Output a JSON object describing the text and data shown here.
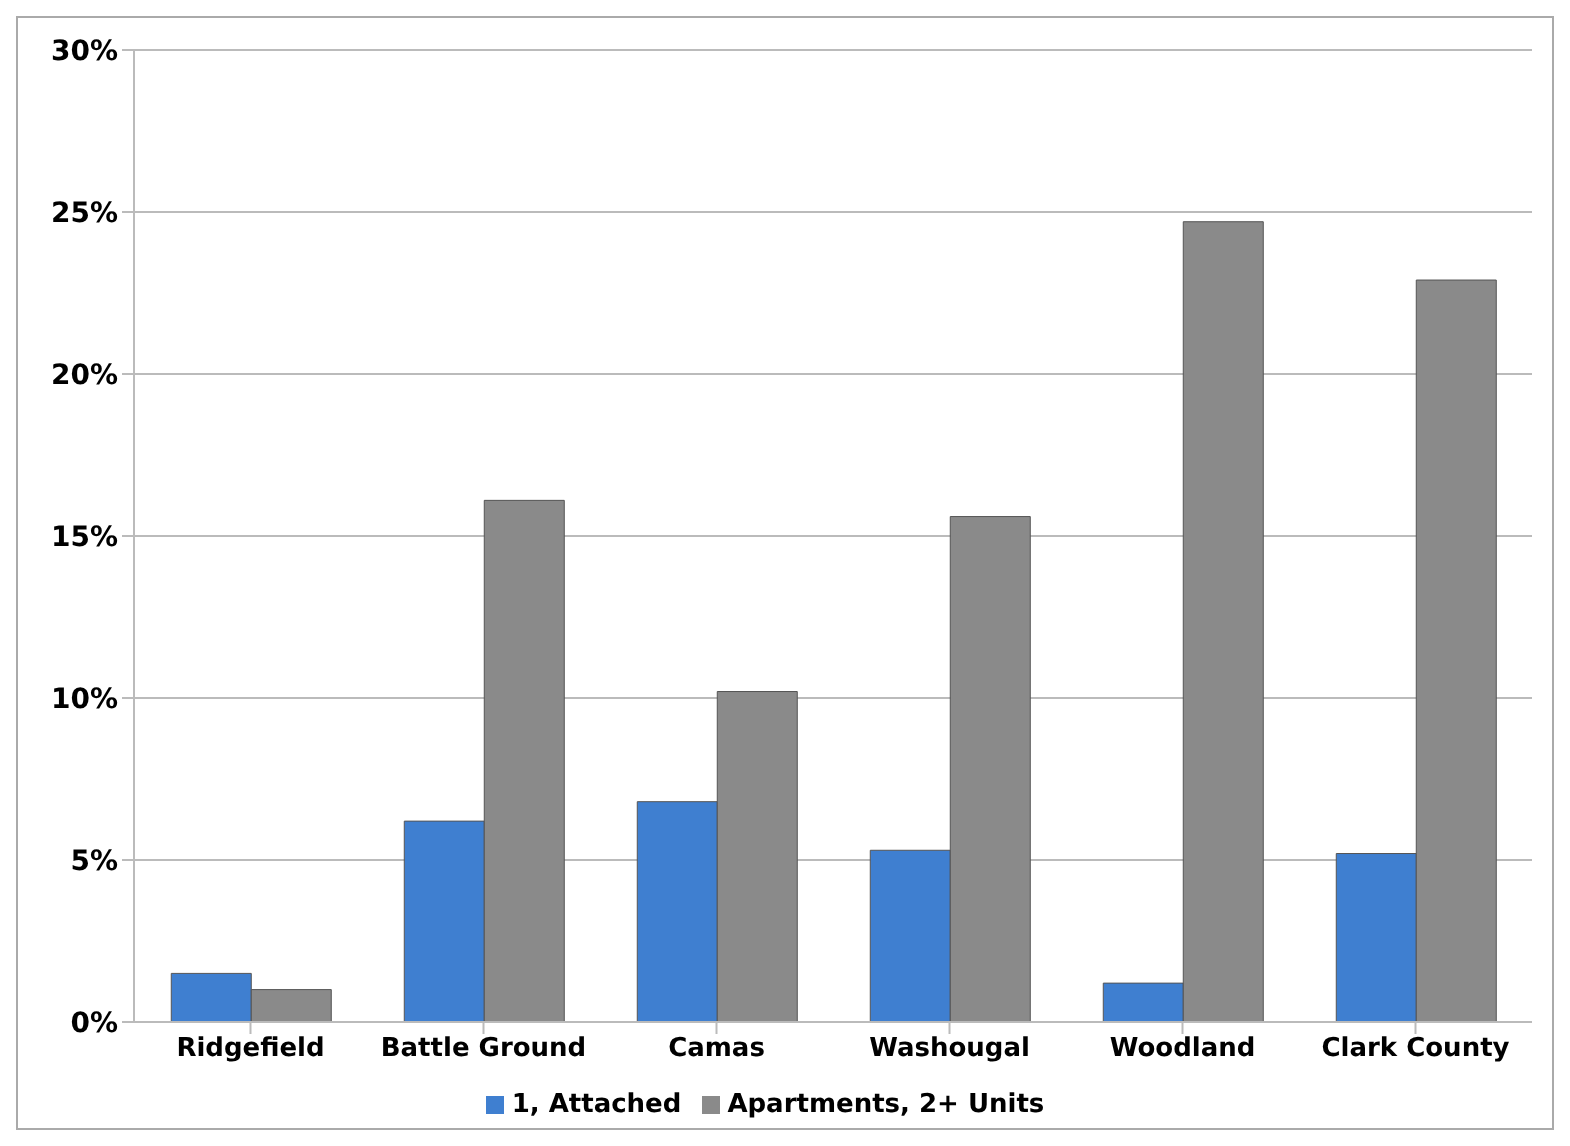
{
  "chart_data": {
    "type": "bar",
    "categories": [
      "Ridgefield",
      "Battle Ground",
      "Camas",
      "Washougal",
      "Woodland",
      "Clark County"
    ],
    "series": [
      {
        "name": "1, Attached",
        "color": "#3f7fd0",
        "values": [
          1.5,
          6.2,
          6.8,
          5.3,
          1.2,
          5.2
        ]
      },
      {
        "name": "Apartments, 2+ Units",
        "color": "#8a8a8a",
        "values": [
          1.0,
          16.1,
          10.2,
          15.6,
          24.7,
          22.9
        ]
      }
    ],
    "ylim": [
      0,
      30
    ],
    "yticks": [
      {
        "value": 0,
        "label": "0%"
      },
      {
        "value": 5,
        "label": "5%"
      },
      {
        "value": 10,
        "label": "10%"
      },
      {
        "value": 15,
        "label": "15%"
      },
      {
        "value": 20,
        "label": "20%"
      },
      {
        "value": 25,
        "label": "25%"
      },
      {
        "value": 30,
        "label": "30%"
      }
    ],
    "grid": "y",
    "legend": "bottom"
  }
}
